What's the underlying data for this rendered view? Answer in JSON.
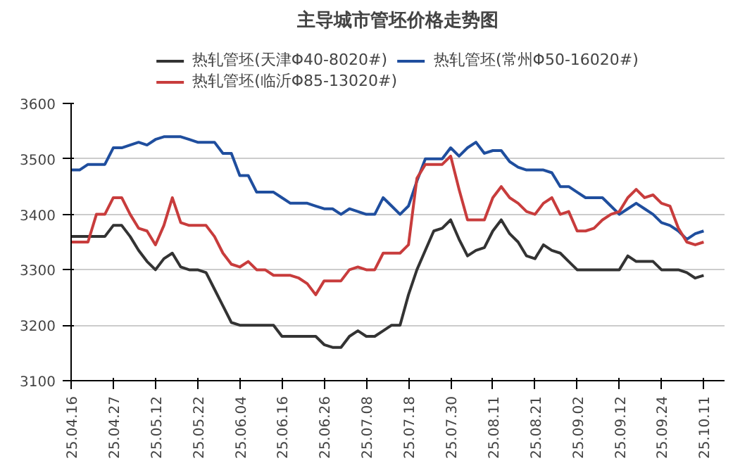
{
  "chart_data": {
    "type": "line",
    "title": "主导城市管坯价格走势图",
    "categories": [
      "25.04.16",
      null,
      null,
      null,
      null,
      "25.04.27",
      null,
      null,
      null,
      null,
      "25.05.12",
      null,
      null,
      null,
      null,
      "25.05.22",
      null,
      null,
      null,
      null,
      "25.06.04",
      null,
      null,
      null,
      null,
      "25.06.16",
      null,
      null,
      null,
      null,
      "25.06.26",
      null,
      null,
      null,
      null,
      "25.07.08",
      null,
      null,
      null,
      null,
      "25.07.18",
      null,
      null,
      null,
      null,
      "25.07.30",
      null,
      null,
      null,
      null,
      "25.08.11",
      null,
      null,
      null,
      null,
      "25.08.21",
      null,
      null,
      null,
      null,
      "25.09.02",
      null,
      null,
      null,
      null,
      "25.09.12",
      null,
      null,
      null,
      null,
      "25.09.24",
      null,
      null,
      null,
      null,
      "25.10.11"
    ],
    "ylim": [
      3100,
      3600
    ],
    "yticks": [
      3100,
      3200,
      3300,
      3400,
      3500,
      3600
    ],
    "grid": "y",
    "legend": "top",
    "line_style": "solid",
    "series": [
      {
        "name": "热轧管坯(天津Φ40-8020#)",
        "color": "#333333",
        "values": [
          3360,
          3360,
          3360,
          3360,
          3360,
          3380,
          3380,
          3360,
          3335,
          3315,
          3300,
          3320,
          3330,
          3305,
          3300,
          3300,
          3295,
          3265,
          3235,
          3205,
          3200,
          3200,
          3200,
          3200,
          3200,
          3180,
          3180,
          3180,
          3180,
          3180,
          3165,
          3160,
          3160,
          3180,
          3190,
          3180,
          3180,
          3190,
          3200,
          3200,
          3255,
          3300,
          3335,
          3370,
          3375,
          3390,
          3355,
          3325,
          3335,
          3340,
          3370,
          3390,
          3365,
          3350,
          3325,
          3320,
          3345,
          3335,
          3330,
          3315,
          3300,
          3300,
          3300,
          3300,
          3300,
          3300,
          3325,
          3315,
          3315,
          3315,
          3300,
          3300,
          3300,
          3295,
          3285,
          3290
        ]
      },
      {
        "name": "热轧管坯(常州Φ50-16020#)",
        "color": "#1f4e9e",
        "values": [
          3480,
          3480,
          3490,
          3490,
          3490,
          3520,
          3520,
          3525,
          3530,
          3525,
          3535,
          3540,
          3540,
          3540,
          3535,
          3530,
          3530,
          3530,
          3510,
          3510,
          3470,
          3470,
          3440,
          3440,
          3440,
          3430,
          3420,
          3420,
          3420,
          3415,
          3410,
          3410,
          3400,
          3410,
          3405,
          3400,
          3400,
          3430,
          3415,
          3400,
          3415,
          3460,
          3500,
          3500,
          3500,
          3520,
          3505,
          3520,
          3530,
          3510,
          3515,
          3515,
          3495,
          3485,
          3480,
          3480,
          3480,
          3475,
          3450,
          3450,
          3440,
          3430,
          3430,
          3430,
          3415,
          3400,
          3410,
          3420,
          3410,
          3400,
          3385,
          3380,
          3370,
          3355,
          3365,
          3370
        ]
      },
      {
        "name": "热轧管坯(临沂Φ85-13020#)",
        "color": "#c83c3c",
        "values": [
          3350,
          3350,
          3350,
          3400,
          3400,
          3430,
          3430,
          3400,
          3375,
          3370,
          3345,
          3380,
          3430,
          3385,
          3380,
          3380,
          3380,
          3360,
          3330,
          3310,
          3305,
          3315,
          3300,
          3300,
          3290,
          3290,
          3290,
          3285,
          3275,
          3255,
          3280,
          3280,
          3280,
          3300,
          3305,
          3300,
          3300,
          3330,
          3330,
          3330,
          3345,
          3465,
          3490,
          3490,
          3490,
          3505,
          3445,
          3390,
          3390,
          3390,
          3430,
          3450,
          3430,
          3420,
          3405,
          3400,
          3420,
          3430,
          3400,
          3405,
          3370,
          3370,
          3375,
          3390,
          3400,
          3405,
          3430,
          3445,
          3430,
          3435,
          3420,
          3415,
          3375,
          3350,
          3345,
          3350
        ]
      }
    ]
  }
}
